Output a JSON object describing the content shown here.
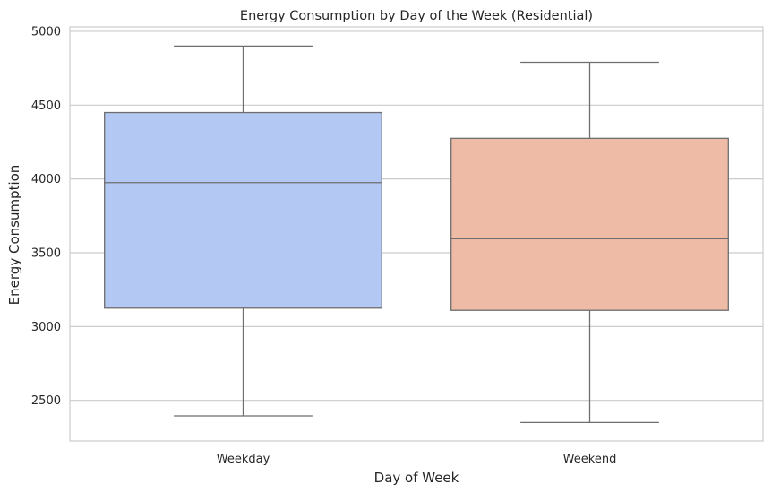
{
  "chart_data": {
    "type": "box",
    "title": "Energy Consumption by Day of the Week (Residential)",
    "xlabel": "Day of Week",
    "ylabel": "Energy Consumption",
    "ylim": [
      2225,
      5030
    ],
    "yticks": [
      2500,
      3000,
      3500,
      4000,
      4500,
      5000
    ],
    "grid": true,
    "categories": [
      "Weekday",
      "Weekend"
    ],
    "boxes": [
      {
        "category": "Weekday",
        "whisker_low": 2395,
        "q1": 3125,
        "median": 3975,
        "q3": 4450,
        "whisker_high": 4900,
        "color": "#b3c8f3"
      },
      {
        "category": "Weekend",
        "whisker_low": 2350,
        "q1": 3110,
        "median": 3595,
        "q3": 4275,
        "whisker_high": 4790,
        "color": "#edbba6"
      }
    ]
  },
  "colors": {
    "grid": "#cccccc",
    "frame": "#cccccc",
    "line": "#6e6e6e",
    "text": "#262626"
  }
}
